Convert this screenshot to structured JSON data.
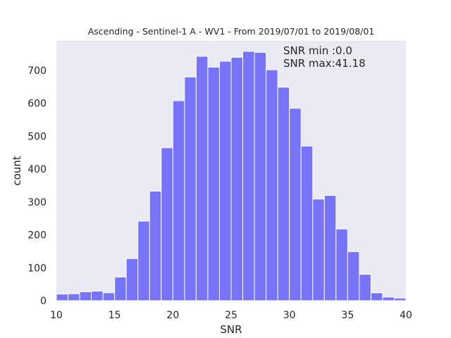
{
  "chart_data": {
    "type": "bar",
    "title": "Ascending - Sentinel-1 A - WV1 - From 2019/07/01 to 2019/08/01",
    "xlabel": "SNR",
    "ylabel": "count",
    "xlim": [
      10,
      40
    ],
    "ylim": [
      0,
      790
    ],
    "x_ticks": [
      10,
      15,
      20,
      25,
      30,
      35,
      40
    ],
    "y_ticks": [
      0,
      100,
      200,
      300,
      400,
      500,
      600,
      700
    ],
    "bin_width": 1.0,
    "bins_left": [
      10,
      11,
      12,
      13,
      14,
      15,
      16,
      17,
      18,
      19,
      20,
      21,
      22,
      23,
      24,
      25,
      26,
      27,
      28,
      29,
      30,
      31,
      32,
      33,
      34,
      35,
      36,
      37,
      38,
      39
    ],
    "values": [
      20,
      21,
      27,
      29,
      24,
      72,
      128,
      242,
      333,
      465,
      608,
      680,
      743,
      710,
      728,
      740,
      758,
      755,
      702,
      649,
      585,
      470,
      309,
      320,
      218,
      149,
      80,
      24,
      11,
      8
    ],
    "bar_color": "#7774fa",
    "background_color": "#eaeaf2",
    "grid": false,
    "annotations": [
      "SNR min :0.0",
      "SNR max:41.18"
    ]
  }
}
